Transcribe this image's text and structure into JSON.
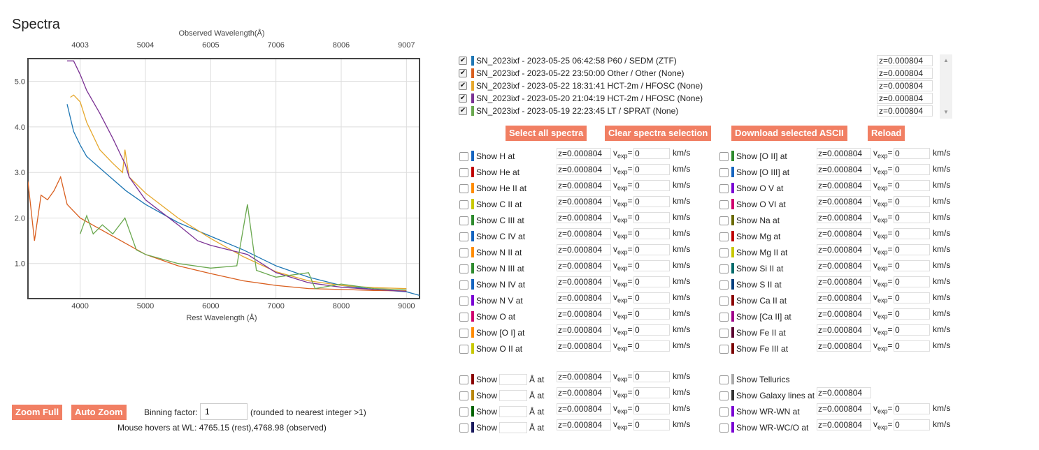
{
  "title": "Spectra",
  "plot": {
    "top_axis_label": "Observed Wavelength(Å)",
    "bottom_axis_label": "Rest Wavelength (Å)",
    "top_ticks": [
      "4003",
      "5004",
      "6005",
      "7006",
      "8006",
      "9007"
    ],
    "bottom_ticks": [
      "4000",
      "5000",
      "6000",
      "7000",
      "8000",
      "9000"
    ],
    "y_ticks": [
      "1.0",
      "2.0",
      "3.0",
      "4.0",
      "5.0"
    ]
  },
  "chart_data": {
    "type": "line",
    "title": "",
    "xlabel": "Rest Wavelength (Å)",
    "x2label": "Observed Wavelength(Å)",
    "ylabel": "",
    "xlim": [
      3200,
      9200
    ],
    "ylim": [
      0.23,
      5.5
    ],
    "grid": true,
    "series": [
      {
        "name": "SN_2023ixf - 2023-05-25 06:42:58 P60 / SEDM (ZTF)",
        "color": "#1f77b4",
        "x": [
          3800,
          3900,
          4000,
          4100,
          4300,
          4500,
          4700,
          5000,
          5500,
          6000,
          6500,
          7000,
          7500,
          8000,
          8500,
          9000,
          9200
        ],
        "y": [
          4.5,
          3.9,
          3.6,
          3.35,
          3.1,
          2.85,
          2.6,
          2.3,
          1.9,
          1.6,
          1.3,
          0.95,
          0.7,
          0.52,
          0.43,
          0.38,
          0.3
        ]
      },
      {
        "name": "SN_2023ixf - 2023-05-22 23:50:00 Other / Other (None)",
        "color": "#d95f1f",
        "x": [
          3200,
          3300,
          3400,
          3500,
          3600,
          3700,
          3800,
          4000,
          4500,
          5000,
          5500,
          6000,
          6500,
          7000,
          7500,
          8000,
          8500,
          9000
        ],
        "y": [
          2.8,
          1.5,
          2.5,
          2.4,
          2.6,
          2.9,
          2.3,
          2.0,
          1.6,
          1.2,
          0.95,
          0.78,
          0.62,
          0.52,
          0.45,
          0.43,
          0.41,
          0.4
        ]
      },
      {
        "name": "SN_2023ixf - 2023-05-22 18:31:41 HCT-2m / HFOSC (None)",
        "color": "#e6a82e",
        "x": [
          3850,
          3900,
          4000,
          4100,
          4300,
          4500,
          4650,
          4686,
          4750,
          5000,
          5500,
          6000,
          6500,
          7000,
          7500,
          8000,
          8500,
          9000
        ],
        "y": [
          4.65,
          4.7,
          4.55,
          4.1,
          3.5,
          3.2,
          3.0,
          3.5,
          2.9,
          2.55,
          2.0,
          1.55,
          1.15,
          0.82,
          0.62,
          0.52,
          0.47,
          0.45
        ]
      },
      {
        "name": "SN_2023ixf - 2023-05-20 21:04:19 HCT-2m / HFOSC (None)",
        "color": "#7b3294",
        "x": [
          3800,
          3900,
          4000,
          4100,
          4300,
          4500,
          4650,
          4686,
          4750,
          5000,
          5500,
          5800,
          6000,
          6563,
          7000,
          7500,
          8000,
          8500,
          9000
        ],
        "y": [
          5.45,
          5.45,
          5.15,
          4.8,
          4.3,
          3.75,
          3.3,
          3.2,
          2.9,
          2.4,
          1.85,
          1.5,
          1.4,
          1.2,
          0.8,
          0.58,
          0.48,
          0.43,
          0.39
        ]
      },
      {
        "name": "SN_2023ixf - 2023-05-19 22:23:45 LT / SPRAT (None)",
        "color": "#6aa84f",
        "x": [
          4000,
          4100,
          4200,
          4340,
          4500,
          4686,
          4861,
          5000,
          5500,
          6000,
          6400,
          6563,
          6700,
          7000,
          7500,
          7600,
          8000,
          8500,
          9000
        ],
        "y": [
          1.65,
          2.05,
          1.65,
          1.85,
          1.65,
          2.0,
          1.3,
          1.2,
          1.0,
          0.9,
          0.95,
          2.3,
          0.85,
          0.7,
          0.8,
          0.45,
          0.55,
          0.45,
          0.42
        ]
      }
    ]
  },
  "buttons": {
    "zoom_full": "Zoom Full",
    "auto_zoom": "Auto Zoom",
    "select_all": "Select all spectra",
    "clear_selection": "Clear spectra selection",
    "download_ascii": "Download selected ASCII",
    "reload": "Reload"
  },
  "binning": {
    "label": "Binning factor:",
    "value": "1",
    "note": "(rounded to nearest integer >1)"
  },
  "hover_text": "Mouse hovers at WL: 4765.15 (rest),4768.98 (observed)",
  "spectra": [
    {
      "label": "SN_2023ixf - 2023-05-25 06:42:58 P60 / SEDM (ZTF)",
      "z": "z=0.000804",
      "color": "#1f77b4",
      "check": "✔"
    },
    {
      "label": "SN_2023ixf - 2023-05-22 23:50:00 Other / Other (None)",
      "z": "z=0.000804",
      "color": "#d95f1f",
      "check": "✔"
    },
    {
      "label": "SN_2023ixf - 2023-05-22 18:31:41 HCT-2m / HFOSC (None)",
      "z": "z=0.000804",
      "color": "#e6a82e",
      "check": "✔"
    },
    {
      "label": "SN_2023ixf - 2023-05-20 21:04:19 HCT-2m / HFOSC (None)",
      "z": "z=0.000804",
      "color": "#7b3294",
      "check": "✔"
    },
    {
      "label": "SN_2023ixf - 2023-05-19 22:23:45 LT / SPRAT (None)",
      "z": "z=0.000804",
      "color": "#6aa84f",
      "check": "✔"
    }
  ],
  "lines_left": [
    {
      "label": "Show H at",
      "color": "#1565c0"
    },
    {
      "label": "Show He at",
      "color": "#c00000"
    },
    {
      "label": "Show He II at",
      "color": "#ff8c00"
    },
    {
      "label": "Show C II at",
      "color": "#c8c800"
    },
    {
      "label": "Show C III at",
      "color": "#2e8b2e"
    },
    {
      "label": "Show C IV at",
      "color": "#1565c0"
    },
    {
      "label": "Show N II at",
      "color": "#ff8c00"
    },
    {
      "label": "Show N III at",
      "color": "#2e8b2e"
    },
    {
      "label": "Show N IV at",
      "color": "#1565c0"
    },
    {
      "label": "Show N V at",
      "color": "#7b00d4"
    },
    {
      "label": "Show O at",
      "color": "#d0006f"
    },
    {
      "label": "Show [O I] at",
      "color": "#ff8c00"
    },
    {
      "label": "Show O II at",
      "color": "#c8c800"
    }
  ],
  "lines_right": [
    {
      "label": "Show [O II] at",
      "color": "#2e8b2e"
    },
    {
      "label": "Show [O III] at",
      "color": "#1565c0"
    },
    {
      "label": "Show O V at",
      "color": "#7b00d4"
    },
    {
      "label": "Show O VI at",
      "color": "#d0006f"
    },
    {
      "label": "Show Na at",
      "color": "#6b6b00"
    },
    {
      "label": "Show Mg at",
      "color": "#c00000"
    },
    {
      "label": "Show Mg II at",
      "color": "#c8c800"
    },
    {
      "label": "Show Si II at",
      "color": "#006b6b"
    },
    {
      "label": "Show S II at",
      "color": "#003f7f"
    },
    {
      "label": "Show Ca II at",
      "color": "#8b0000"
    },
    {
      "label": "Show [Ca II] at",
      "color": "#a0008b"
    },
    {
      "label": "Show Fe II at",
      "color": "#5a0030"
    },
    {
      "label": "Show Fe III at",
      "color": "#7b0000"
    }
  ],
  "custom_lines": [
    {
      "show": "Show",
      "unit": "Å at",
      "color": "#8b0000"
    },
    {
      "show": "Show",
      "unit": "Å at",
      "color": "#b8860b"
    },
    {
      "show": "Show",
      "unit": "Å at",
      "color": "#006400"
    },
    {
      "show": "Show",
      "unit": "Å at",
      "color": "#1a1a5e"
    }
  ],
  "special_lines": [
    {
      "label": "Show Tellurics",
      "color": "#aaaaaa",
      "z": "",
      "v": ""
    },
    {
      "label": "Show Galaxy lines at",
      "color": "#333333",
      "z": "z=0.000804",
      "v": ""
    },
    {
      "label": "Show WR-WN at",
      "color": "#7b00d4",
      "z": "z=0.000804",
      "v": "0"
    },
    {
      "label": "Show WR-WC/O at",
      "color": "#7b00d4",
      "z": "z=0.000804",
      "v": "0"
    }
  ],
  "line_defaults": {
    "z": "z=0.000804",
    "v": "0",
    "vexp_v": "v",
    "vexp_sub": "exp",
    "vexp_eq": "=",
    "unit": "km/s"
  }
}
